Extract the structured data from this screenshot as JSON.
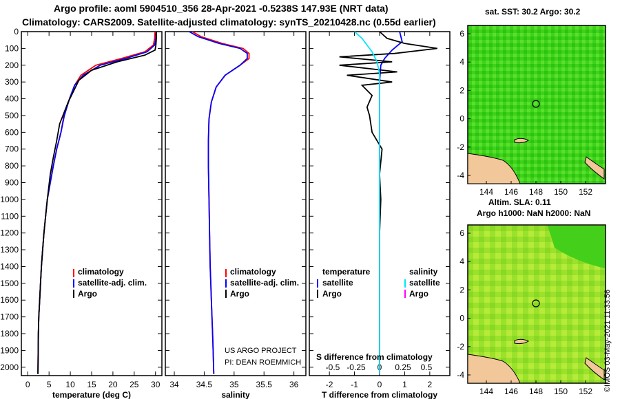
{
  "header": {
    "line1": "Argo profile: aoml 5904510_356 28-Apr-2021 -0.5238S 147.93E (NRT data)",
    "line2": "Climatology: CARS2009. Satellite-adjusted climatology: synTS_20210428.nc (0.55d earlier)"
  },
  "colors": {
    "climatology": "#ff0000",
    "satellite": "#0000ff",
    "argo": "#000000",
    "satellite_salinity": "#00e5ff",
    "argo_salinity": "#ff00ff"
  },
  "depth_ticks": [
    0,
    100,
    200,
    300,
    400,
    500,
    600,
    700,
    800,
    900,
    1000,
    1100,
    1200,
    1300,
    1400,
    1500,
    1600,
    1700,
    1800,
    1900,
    2000
  ],
  "panel_temp": {
    "xlabel": "temperature (deg C)",
    "xticks": [
      "0",
      "5",
      "10",
      "15",
      "20",
      "25",
      "30"
    ],
    "legend": [
      "climatology",
      "satellite-adj. clim.",
      "Argo"
    ]
  },
  "panel_sal": {
    "xlabel": "salinity",
    "xticks": [
      "34",
      "34.5",
      "35",
      "35.5",
      "36"
    ],
    "legend": [
      "climatology",
      "satellite-adj. clim.",
      "Argo"
    ],
    "credit1": "US ARGO PROJECT",
    "credit2": "PI: DEAN ROEMMICH"
  },
  "panel_diff": {
    "xlabel": "T difference from climatology",
    "xticks": [
      "-2",
      "-1",
      "0",
      "1",
      "2"
    ],
    "s_title": "S difference from climatology",
    "s_ticks": [
      "-0.5",
      "-0.25",
      "0",
      "0.25",
      "0.5"
    ],
    "legend_temp_title": "temperature",
    "legend_sal_title": "salinity",
    "legend_temp": [
      "satellite",
      "Argo"
    ],
    "legend_sal": [
      "satellite",
      "Argo"
    ]
  },
  "map_sst": {
    "title": "sat. SST: 30.2 Argo: 30.2",
    "yticks": [
      "6",
      "4",
      "2",
      "0",
      "-2",
      "-4"
    ],
    "xticks": [
      "144",
      "146",
      "148",
      "150",
      "152"
    ]
  },
  "map_sla": {
    "title1": "Altim. SLA: 0.11",
    "title2": "Argo h1000: NaN h2000: NaN",
    "yticks": [
      "6",
      "4",
      "2",
      "0",
      "-2",
      "-4"
    ],
    "xticks": [
      "144",
      "146",
      "148",
      "150",
      "152"
    ]
  },
  "footer": "©IMOS 03-May-2021 11:33:56",
  "chart_data": [
    {
      "type": "line",
      "title": "",
      "xlabel": "temperature (deg C)",
      "ylabel": "",
      "xlim": [
        -1.5,
        31.5
      ],
      "ylim": [
        2050,
        0
      ],
      "series": [
        {
          "name": "climatology",
          "x": [
            29.9,
            29.8,
            29.5,
            27.5,
            22,
            16,
            12.5,
            11,
            9.8,
            8.5,
            7.8,
            6.8,
            6,
            5.3,
            4.6,
            4.2,
            3.8,
            3.5,
            3.2,
            3,
            2.8,
            2.6,
            2.5,
            2.4
          ],
          "y": [
            0,
            40,
            80,
            120,
            160,
            200,
            260,
            320,
            400,
            500,
            600,
            700,
            800,
            900,
            1000,
            1100,
            1200,
            1300,
            1400,
            1500,
            1600,
            1700,
            1800,
            2040
          ]
        },
        {
          "name": "satellite-adj. clim.",
          "x": [
            30.2,
            30.1,
            29.8,
            28,
            23,
            17,
            13,
            11,
            9.8,
            8.6,
            7.8,
            6.8,
            6,
            5.3,
            4.6,
            4.2,
            3.8,
            3.5,
            3.2,
            3,
            2.8,
            2.6,
            2.5,
            2.4
          ],
          "y": [
            0,
            40,
            80,
            120,
            160,
            200,
            260,
            320,
            400,
            500,
            600,
            700,
            800,
            900,
            1000,
            1100,
            1200,
            1300,
            1400,
            1500,
            1600,
            1700,
            1800,
            2040
          ]
        },
        {
          "name": "Argo",
          "x": [
            30.2,
            30.2,
            30.1,
            29.9,
            27.5,
            21,
            15,
            12,
            9.5,
            7.5,
            6.8,
            6,
            5.3,
            4.6,
            4.2,
            3.8,
            3.5,
            3.2,
            3,
            2.8,
            2.6,
            2.5,
            2.4
          ],
          "y": [
            0,
            40,
            80,
            110,
            140,
            180,
            230,
            290,
            420,
            550,
            650,
            750,
            850,
            1000,
            1100,
            1200,
            1300,
            1400,
            1500,
            1600,
            1700,
            1800,
            2040
          ]
        }
      ]
    },
    {
      "type": "line",
      "title": "",
      "xlabel": "salinity",
      "ylabel": "",
      "xlim": [
        33.85,
        36.2
      ],
      "ylim": [
        2050,
        0
      ],
      "series": [
        {
          "name": "climatology",
          "x": [
            34.3,
            34.45,
            34.8,
            35.15,
            35.25,
            35.25,
            35.1,
            34.85,
            34.7,
            34.62,
            34.58,
            34.57,
            34.57,
            34.58,
            34.59,
            34.6,
            34.61,
            34.62,
            34.63,
            34.64,
            34.65,
            34.66
          ],
          "y": [
            0,
            30,
            70,
            100,
            130,
            160,
            200,
            260,
            330,
            420,
            520,
            650,
            800,
            1000,
            1200,
            1400,
            1500,
            1600,
            1700,
            1800,
            1900,
            2040
          ]
        },
        {
          "name": "satellite-adj. clim.",
          "x": [
            34.25,
            34.4,
            34.75,
            35.1,
            35.22,
            35.22,
            35.1,
            34.85,
            34.7,
            34.62,
            34.58,
            34.57,
            34.57,
            34.58,
            34.59,
            34.6,
            34.61,
            34.62,
            34.63,
            34.64,
            34.65,
            34.66
          ],
          "y": [
            0,
            30,
            70,
            100,
            130,
            160,
            200,
            260,
            330,
            420,
            520,
            650,
            800,
            1000,
            1200,
            1400,
            1500,
            1600,
            1700,
            1800,
            1900,
            2040
          ]
        }
      ]
    },
    {
      "type": "line",
      "title": "",
      "xlabel": "T difference from climatology",
      "ylabel": "",
      "xlim": [
        -2.8,
        2.8
      ],
      "ylim": [
        2050,
        0
      ],
      "series": [
        {
          "name": "temperature satellite",
          "x": [
            0.8,
            0.9,
            0.5,
            0.2,
            0.05,
            0,
            0,
            0,
            0,
            0,
            0
          ],
          "y": [
            0,
            60,
            110,
            160,
            200,
            300,
            400,
            800,
            1200,
            1600,
            2040
          ]
        },
        {
          "name": "temperature Argo",
          "x": [
            0,
            0.3,
            1.0,
            2.3,
            0.6,
            -1.6,
            0.5,
            -1.6,
            0.7,
            -1.3,
            0.5,
            -0.7,
            -0.3,
            -0.5,
            -0.4,
            -0.3,
            0.1,
            0,
            0.05,
            0,
            0,
            0,
            0,
            0
          ],
          "y": [
            0,
            40,
            70,
            100,
            130,
            150,
            180,
            200,
            240,
            260,
            300,
            320,
            380,
            450,
            500,
            600,
            700,
            850,
            1000,
            1200,
            1300,
            1400,
            1600,
            2040
          ]
        },
        {
          "name": "salinity satellite",
          "x": [
            -1.0,
            -0.7,
            -0.5,
            -0.3,
            -0.1,
            0,
            0,
            0
          ],
          "y": [
            0,
            40,
            80,
            120,
            180,
            250,
            600,
            2040
          ]
        }
      ]
    }
  ]
}
